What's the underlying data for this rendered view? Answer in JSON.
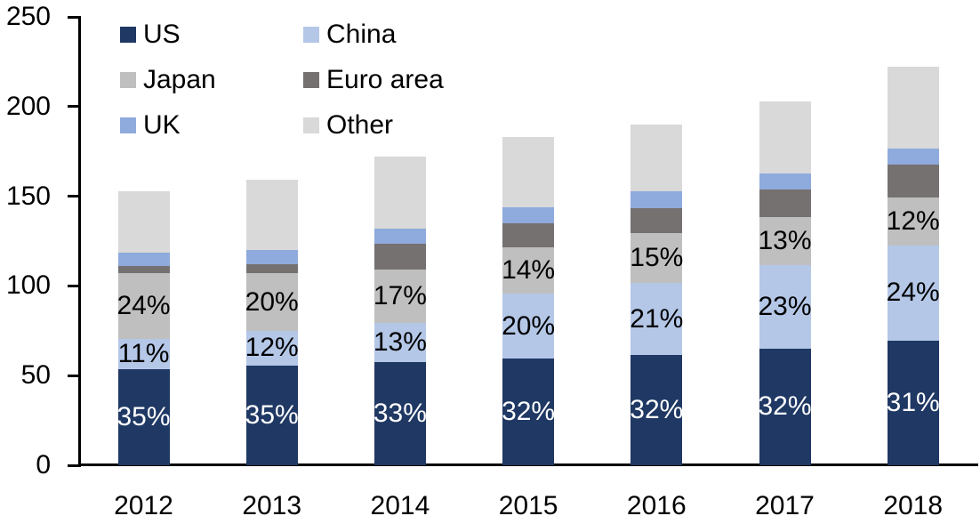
{
  "chart_data": {
    "type": "bar",
    "variant": "stacked",
    "title": "",
    "categories": [
      "2012",
      "2013",
      "2014",
      "2015",
      "2016",
      "2017",
      "2018"
    ],
    "series": [
      {
        "name": "US",
        "color": "#1F3864",
        "values": [
          53.5,
          55.5,
          57.5,
          59.5,
          61.5,
          65.0,
          69.5
        ],
        "labels": [
          "35%",
          "35%",
          "33%",
          "32%",
          "32%",
          "32%",
          "31%"
        ],
        "label_color": "#FFFFFF"
      },
      {
        "name": "China",
        "color": "#B4C7E7",
        "values": [
          17.0,
          19.5,
          22.0,
          36.0,
          40.0,
          46.5,
          53.0
        ],
        "labels": [
          "11%",
          "12%",
          "13%",
          "20%",
          "21%",
          "23%",
          "24%"
        ],
        "label_color": "#000000"
      },
      {
        "name": "Japan",
        "color": "#BFBFBF",
        "values": [
          36.5,
          32.0,
          29.5,
          26.0,
          28.0,
          27.0,
          27.0
        ],
        "labels": [
          "24%",
          "20%",
          "17%",
          "14%",
          "15%",
          "13%",
          "12%"
        ],
        "label_color": "#000000"
      },
      {
        "name": "Euro area",
        "color": "#767171",
        "values": [
          4.0,
          5.0,
          14.5,
          13.5,
          14.0,
          15.5,
          18.0
        ],
        "labels": null,
        "label_color": "#000000"
      },
      {
        "name": "UK",
        "color": "#8FAADC",
        "values": [
          7.5,
          8.0,
          8.5,
          9.0,
          9.5,
          8.5,
          9.0
        ],
        "labels": null,
        "label_color": "#000000"
      },
      {
        "name": "Other",
        "color": "#D9D9D9",
        "values": [
          34.5,
          39.0,
          40.0,
          39.0,
          37.0,
          40.5,
          45.5
        ],
        "labels": null,
        "label_color": "#000000"
      }
    ],
    "stack_totals": [
      153,
      159,
      172,
      183,
      190,
      203,
      222
    ],
    "y_axis": {
      "min": 0,
      "max": 250,
      "step": 50,
      "tick_labels": [
        "0",
        "50",
        "100",
        "150",
        "200",
        "250"
      ]
    },
    "x_axis": {
      "tick_labels": [
        "2012",
        "2013",
        "2014",
        "2015",
        "2016",
        "2017",
        "2018"
      ]
    },
    "grid": false,
    "legend": {
      "position": "top-left",
      "columns": [
        [
          "US",
          "Japan",
          "UK"
        ],
        [
          "China",
          "Euro area",
          "Other"
        ]
      ]
    },
    "axis_color": "#000000",
    "background_color": "#FFFFFF"
  }
}
